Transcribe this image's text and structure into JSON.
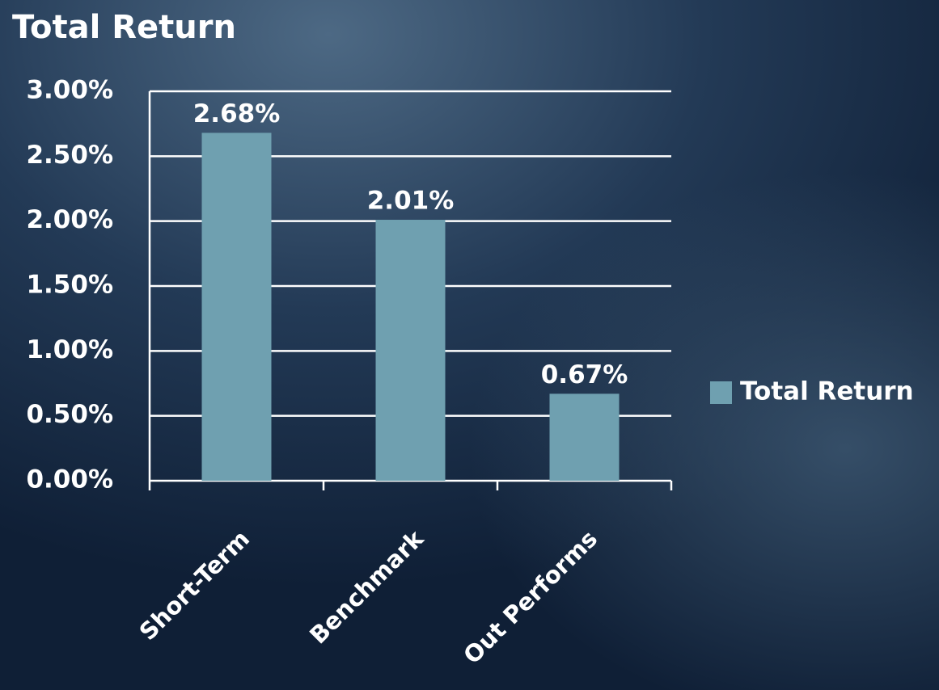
{
  "chart_data": {
    "type": "bar",
    "title": "Total Return",
    "categories": [
      "Short-Term",
      "Benchmark",
      "Out Performs"
    ],
    "series": [
      {
        "name": "Total Return",
        "color": "#6fa0b0",
        "values": [
          2.68,
          2.01,
          0.67
        ],
        "value_labels": [
          "2.68%",
          "2.01%",
          "0.67%"
        ]
      }
    ],
    "ylim": [
      0,
      3
    ],
    "yticks": [
      {
        "value": 0,
        "label": "0.00%"
      },
      {
        "value": 0.5,
        "label": "0.50%"
      },
      {
        "value": 1,
        "label": "1.00%"
      },
      {
        "value": 1.5,
        "label": "1.50%"
      },
      {
        "value": 2,
        "label": "2.00%"
      },
      {
        "value": 2.5,
        "label": "2.50%"
      },
      {
        "value": 3,
        "label": "3.00%"
      }
    ],
    "grid": true,
    "legend": "right"
  }
}
